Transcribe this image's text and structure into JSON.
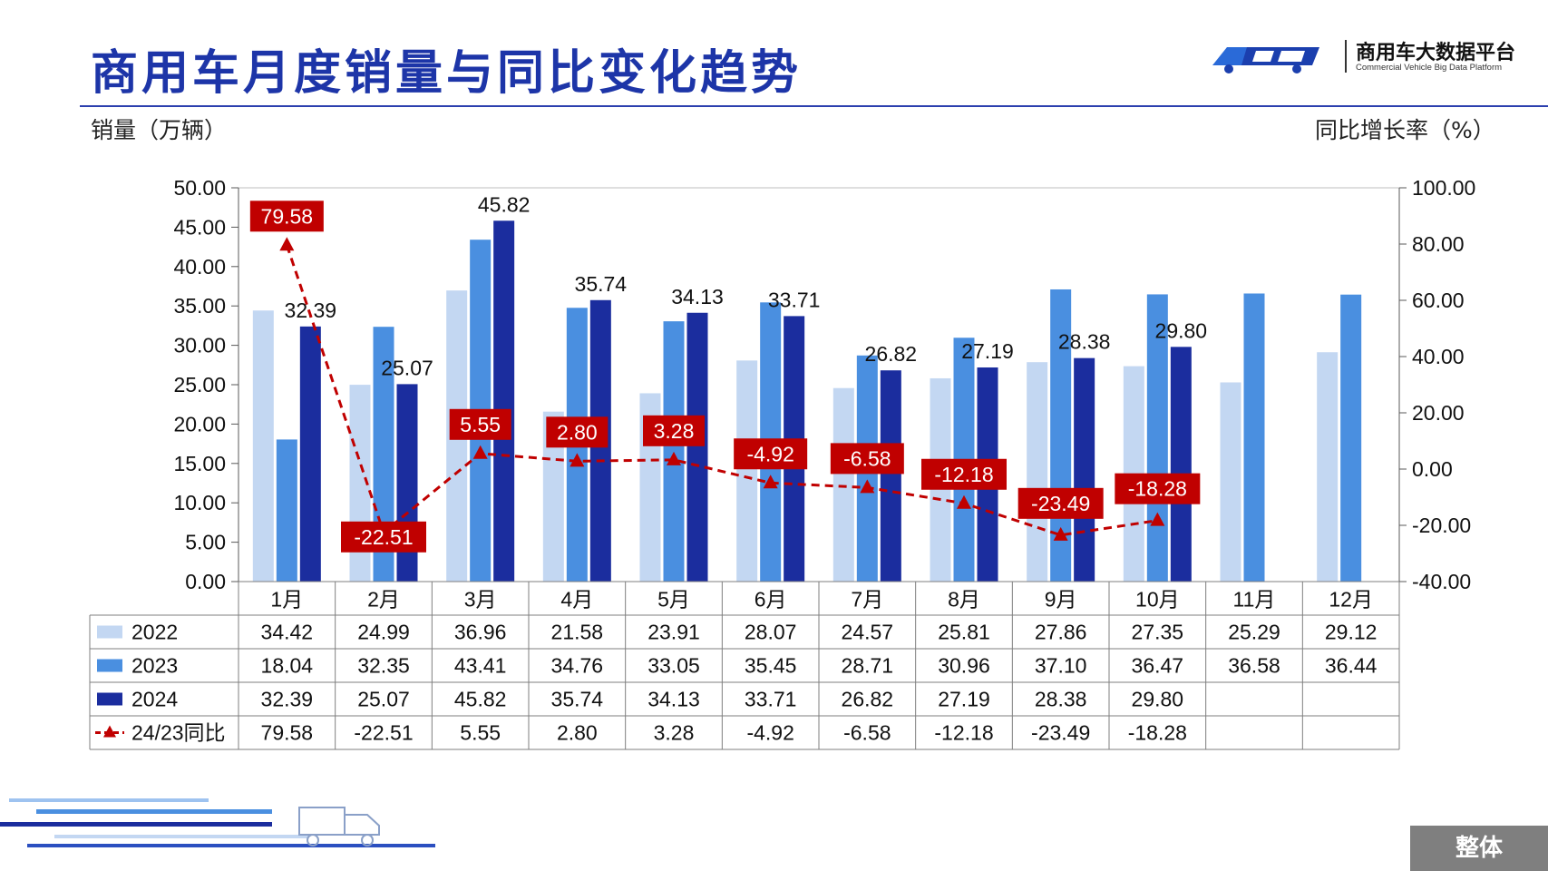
{
  "page": {
    "title": "商用车月度销量与同比变化趋势",
    "left_axis_label": "销量（万辆）",
    "right_axis_label": "同比增长率（%）",
    "logo_cn": "商用车大数据平台",
    "logo_en": "Commercial Vehicle Big Data Platform",
    "badge": "整体"
  },
  "colors": {
    "s2022": "#c3d7f2",
    "s2023": "#4a8fe0",
    "s2024": "#1b2d9e",
    "yoy": "#c00000",
    "title": "#1d35a8"
  },
  "chart_data": {
    "type": "bar",
    "categories": [
      "1月",
      "2月",
      "3月",
      "4月",
      "5月",
      "6月",
      "7月",
      "8月",
      "9月",
      "10月",
      "11月",
      "12月"
    ],
    "series": [
      {
        "name": "2022",
        "values": [
          34.42,
          24.99,
          36.96,
          21.58,
          23.91,
          28.07,
          24.57,
          25.81,
          27.86,
          27.35,
          25.29,
          29.12
        ]
      },
      {
        "name": "2023",
        "values": [
          18.04,
          32.35,
          43.41,
          34.76,
          33.05,
          35.45,
          28.71,
          30.96,
          37.1,
          36.47,
          36.58,
          36.44
        ]
      },
      {
        "name": "2024",
        "values": [
          32.39,
          25.07,
          45.82,
          35.74,
          34.13,
          33.71,
          26.82,
          27.19,
          28.38,
          29.8,
          null,
          null
        ]
      }
    ],
    "line_series": {
      "name": "24/23同比",
      "values": [
        79.58,
        -22.51,
        5.55,
        2.8,
        3.28,
        -4.92,
        -6.58,
        -12.18,
        -23.49,
        -18.28,
        null,
        null
      ]
    },
    "ylabel": "销量（万辆）",
    "y2label": "同比增长率（%）",
    "ylim": [
      0,
      50
    ],
    "y2lim": [
      -40,
      100
    ],
    "yticks": [
      "0.00",
      "5.00",
      "10.00",
      "15.00",
      "20.00",
      "25.00",
      "30.00",
      "35.00",
      "40.00",
      "45.00",
      "50.00"
    ],
    "y2ticks": [
      "-40.00",
      "-20.00",
      "0.00",
      "20.00",
      "40.00",
      "60.00",
      "80.00",
      "100.00"
    ],
    "table": {
      "rows": [
        {
          "label": "2022",
          "values": [
            "34.42",
            "24.99",
            "36.96",
            "21.58",
            "23.91",
            "28.07",
            "24.57",
            "25.81",
            "27.86",
            "27.35",
            "25.29",
            "29.12"
          ]
        },
        {
          "label": "2023",
          "values": [
            "18.04",
            "32.35",
            "43.41",
            "34.76",
            "33.05",
            "35.45",
            "28.71",
            "30.96",
            "37.10",
            "36.47",
            "36.58",
            "36.44"
          ]
        },
        {
          "label": "2024",
          "values": [
            "32.39",
            "25.07",
            "45.82",
            "35.74",
            "34.13",
            "33.71",
            "26.82",
            "27.19",
            "28.38",
            "29.80",
            "",
            ""
          ]
        },
        {
          "label": "24/23同比",
          "values": [
            "79.58",
            "-22.51",
            "5.55",
            "2.80",
            "3.28",
            "-4.92",
            "-6.58",
            "-12.18",
            "-23.49",
            "-18.28",
            "",
            ""
          ]
        }
      ]
    },
    "bar_labels_2024": [
      "32.39",
      "25.07",
      "45.82",
      "35.74",
      "34.13",
      "33.71",
      "26.82",
      "27.19",
      "28.38",
      "29.80"
    ],
    "yoy_labels": [
      "79.58",
      "-22.51",
      "5.55",
      "2.80",
      "3.28",
      "-4.92",
      "-6.58",
      "-12.18",
      "-23.49",
      "-18.28"
    ]
  }
}
